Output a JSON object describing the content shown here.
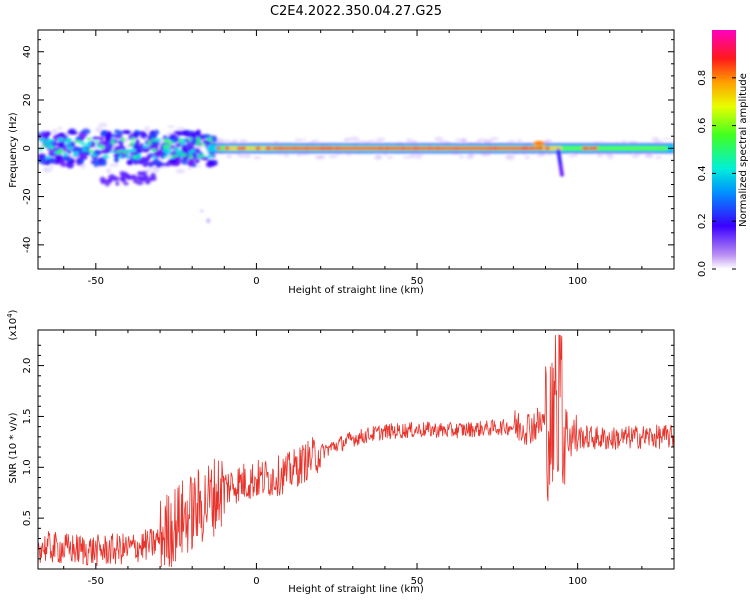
{
  "title": "C2E4.2022.350.04.27.G25",
  "chart_data": [
    {
      "type": "heatmap",
      "xlabel": "Height of straight line (km)",
      "ylabel": "Frequency (Hz)",
      "xlim": [
        -68,
        130
      ],
      "ylim": [
        -50,
        49
      ],
      "xticks": [
        -50,
        0,
        50,
        100
      ],
      "yticks": [
        -40,
        -20,
        0,
        20,
        40
      ],
      "colorbar": {
        "label": "Normalized spectral amplitude",
        "range": [
          0.0,
          1.0
        ],
        "ticks": [
          "0.0",
          "0.2",
          "0.4",
          "0.6",
          "0.8"
        ],
        "colormap": "rainbow (white-purple-blue-cyan-green-yellow-orange-red-magenta)"
      },
      "features": {
        "center_line_hz": 0,
        "strong_band_km": [
          -15,
          90
        ],
        "scattered_region_km": [
          -68,
          -15
        ],
        "tail_near_95km_hz_min": -12,
        "isolated_blob_km": [
          -15,
          -30
        ]
      }
    },
    {
      "type": "line",
      "xlabel": "Height of straight line (km)",
      "ylabel": "SNR (10 * v/v)",
      "multiplier_label": "(x10",
      "multiplier_exp": "4",
      "multiplier_close": ")",
      "xlim": [
        -68,
        130
      ],
      "ylim": [
        0,
        2.35
      ],
      "xticks": [
        -50,
        0,
        50,
        100
      ],
      "yticks": [
        "0.5",
        "1.0",
        "1.5",
        "2.0"
      ],
      "color": "#e8332b",
      "series": [
        {
          "x": [
            -68,
            -60,
            -50,
            -40,
            -32,
            -25,
            -18,
            -10,
            -5,
            0,
            5,
            10,
            15,
            20,
            25,
            30,
            35,
            40,
            45,
            50,
            55,
            60,
            70,
            80,
            85,
            90,
            93,
            95,
            97,
            100,
            110,
            120,
            130
          ],
          "values": [
            0.22,
            0.2,
            0.18,
            0.2,
            0.25,
            0.45,
            0.6,
            0.8,
            0.85,
            0.88,
            0.9,
            0.95,
            1.05,
            1.15,
            1.22,
            1.28,
            1.32,
            1.35,
            1.36,
            1.37,
            1.37,
            1.36,
            1.38,
            1.4,
            1.4,
            1.45,
            1.3,
            1.6,
            1.32,
            1.3,
            1.28,
            1.3,
            1.3
          ]
        }
      ]
    }
  ]
}
